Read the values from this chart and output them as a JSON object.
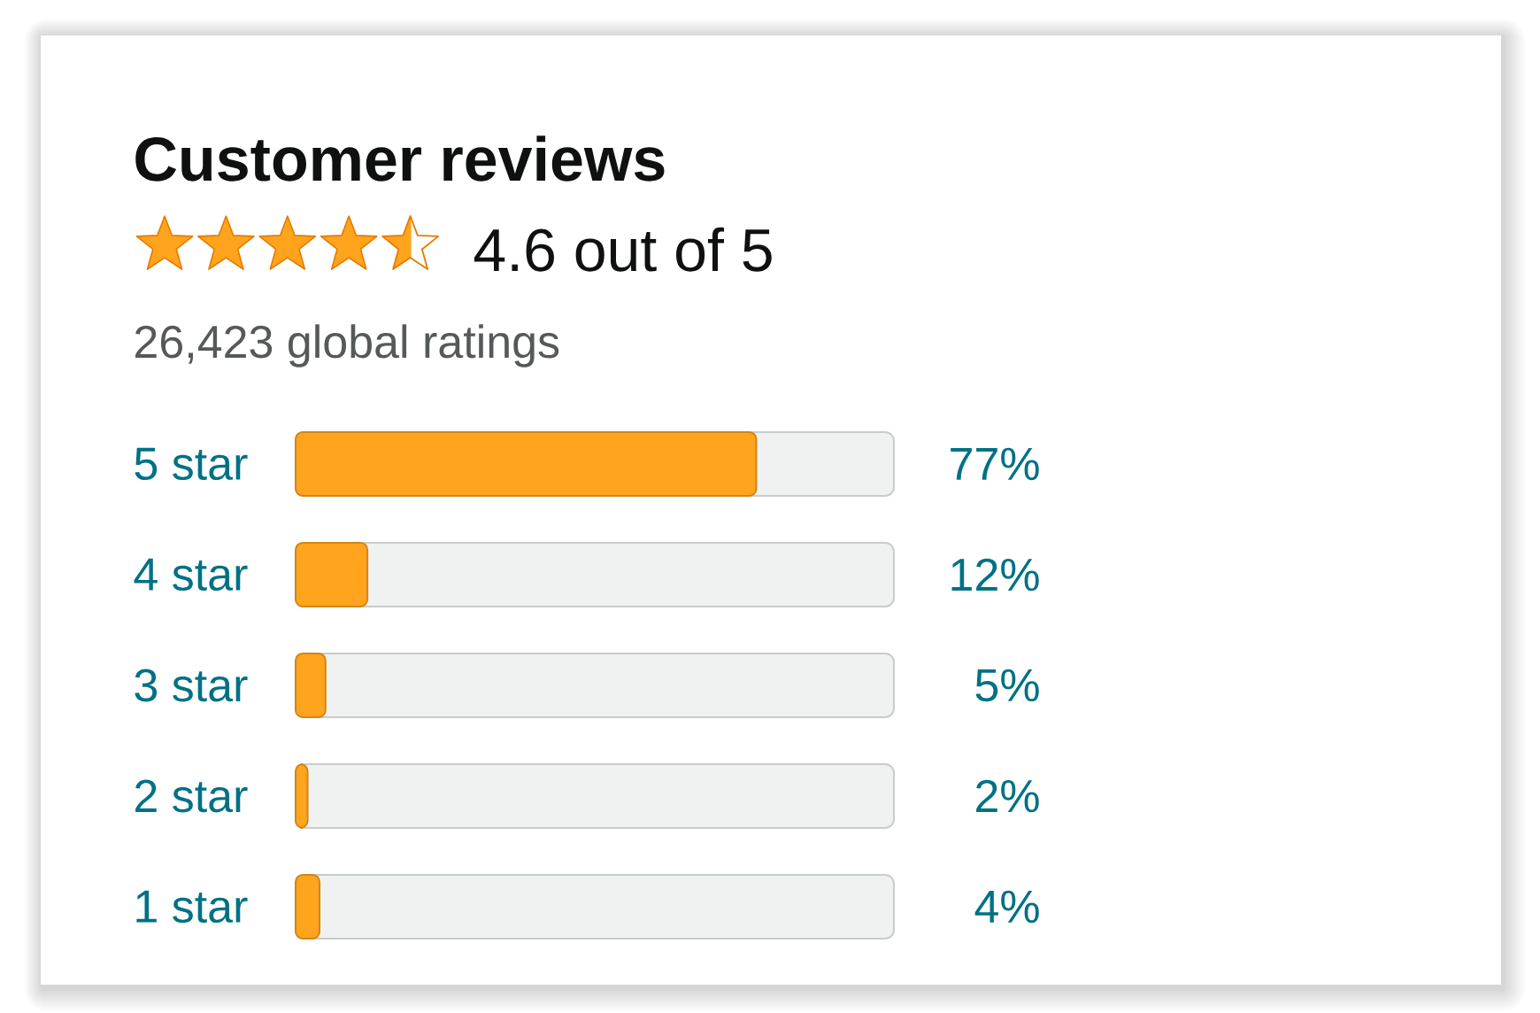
{
  "chart_data": {
    "type": "bar",
    "orientation": "horizontal",
    "title": "Customer reviews",
    "annotations": [
      "4.6 out of 5",
      "26,423 global ratings"
    ],
    "categories": [
      "5 star",
      "4 star",
      "3 star",
      "2 star",
      "1 star"
    ],
    "values": [
      77,
      12,
      5,
      2,
      4
    ],
    "color": "#ffa41c",
    "value_labels": [
      "77%",
      "12%",
      "5%",
      "2%",
      "4%"
    ],
    "xlim": [
      0,
      100
    ],
    "tick_labels": "y"
  }
}
